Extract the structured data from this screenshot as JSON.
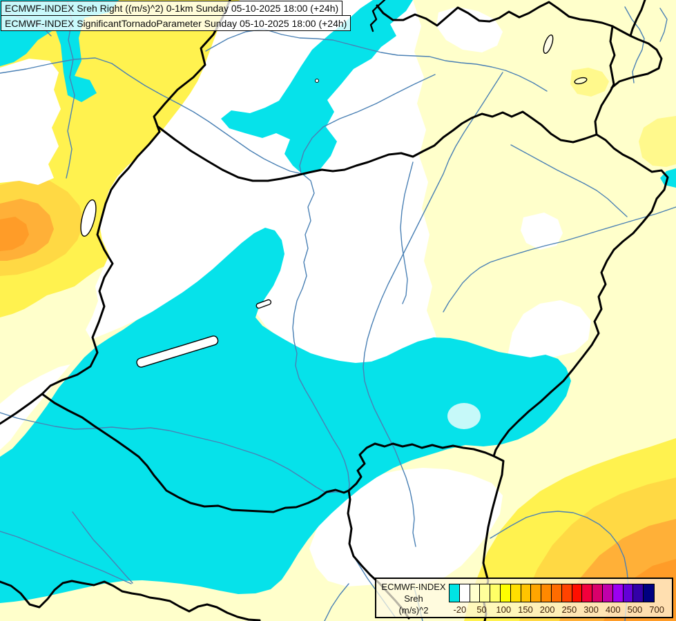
{
  "titles": {
    "line1": "ECMWF-INDEX Sreh Right ((m/s)^2) 0-1km Sunday 05-10-2025 18:00 (+24h)",
    "line2": "ECMWF-INDEX SignificantTornadoParameter Sunday 05-10-2025 18:00 (+24h)"
  },
  "legend": {
    "title": "ECMWF-INDEX",
    "subtitle": "Sreh",
    "units": "(m/s)^2",
    "ticks": [
      "-20",
      "50",
      "100",
      "150",
      "200",
      "250",
      "300",
      "400",
      "500",
      "700"
    ],
    "colors": [
      "#00e4e4",
      "#ffffff",
      "#ffffcd",
      "#ffff9b",
      "#ffff66",
      "#ffff00",
      "#ffdf00",
      "#ffc400",
      "#ffa500",
      "#ff8900",
      "#ff6c00",
      "#ff4300",
      "#ff0f00",
      "#f2003c",
      "#d9006b",
      "#c000ab",
      "#9c00f2",
      "#6300d8",
      "#3300a8",
      "#000080"
    ]
  },
  "map_colors": {
    "cyan": "#06e2ea",
    "pale_yellow": "#ffffcb",
    "yellow": "#fff24f",
    "gold": "#ffd944",
    "orange": "#ffb038",
    "deep_orange": "#ff9c28",
    "river": "#4a80b4",
    "border": "#000000"
  }
}
